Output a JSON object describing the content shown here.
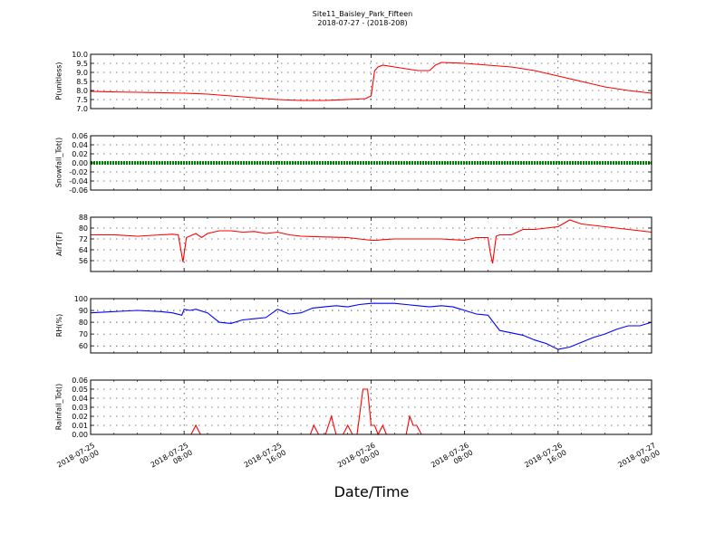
{
  "title": "Site11_Baisley_Park_Fifteen",
  "subtitle": "2018-07-27 - (2018-208)",
  "xlabel": "Date/Time",
  "x_ticks": [
    "2018-07-25\n00:00",
    "2018-07-25\n08:00",
    "2018-07-25\n16:00",
    "2018-07-26\n00:00",
    "2018-07-26\n08:00",
    "2018-07-26\n16:00",
    "2018-07-27\n00:00"
  ],
  "colors": {
    "red": "#ff0000",
    "green": "#008000",
    "blue": "#0000ff"
  },
  "chart_data": [
    {
      "type": "line",
      "ylabel": "P(unitless)",
      "ylim": [
        7.0,
        10.0
      ],
      "yticks": [
        "7.0",
        "7.5",
        "8.0",
        "8.5",
        "9.0",
        "9.5",
        "10.0"
      ],
      "yticks_num": [
        7.0,
        7.5,
        8.0,
        8.5,
        9.0,
        9.5,
        10.0
      ],
      "grid": true,
      "series": [
        {
          "color": "red",
          "x": [
            0,
            2,
            4,
            6,
            8,
            9,
            10,
            12,
            14,
            16,
            18,
            20,
            22,
            23.5,
            24,
            24.3,
            24.6,
            25,
            26,
            28,
            29,
            29.5,
            30,
            32,
            34,
            36,
            38,
            40,
            42,
            44,
            46,
            48
          ],
          "y": [
            7.95,
            7.92,
            7.9,
            7.88,
            7.85,
            7.83,
            7.8,
            7.7,
            7.6,
            7.5,
            7.45,
            7.45,
            7.5,
            7.55,
            7.7,
            9.1,
            9.3,
            9.4,
            9.3,
            9.1,
            9.1,
            9.4,
            9.55,
            9.5,
            9.4,
            9.3,
            9.1,
            8.8,
            8.5,
            8.2,
            8.0,
            7.85
          ]
        }
      ]
    },
    {
      "type": "line",
      "ylabel": "Snowfall_Tot()",
      "ylim": [
        -0.06,
        0.06
      ],
      "yticks": [
        "-0.06",
        "-0.04",
        "-0.02",
        "0.00",
        "0.02",
        "0.04",
        "0.06"
      ],
      "yticks_num": [
        -0.06,
        -0.04,
        -0.02,
        0.0,
        0.02,
        0.04,
        0.06
      ],
      "grid": true,
      "series": [
        {
          "color": "green",
          "x": [
            0,
            48
          ],
          "y": [
            0,
            0
          ]
        }
      ]
    },
    {
      "type": "line",
      "ylabel": "AirT(F)",
      "ylim": [
        48,
        88
      ],
      "yticks": [
        "56",
        "64",
        "72",
        "80",
        "88"
      ],
      "yticks_num": [
        56,
        64,
        72,
        80,
        88
      ],
      "grid": true,
      "series": [
        {
          "color": "red",
          "x": [
            0,
            2,
            4,
            6,
            7,
            7.5,
            7.7,
            7.9,
            8.2,
            9,
            9.5,
            10,
            11,
            12,
            13,
            14,
            15,
            16,
            17,
            18,
            20,
            22,
            23,
            24,
            24.5,
            25,
            26,
            28,
            30,
            32,
            33,
            34,
            34.2,
            34.4,
            34.7,
            35,
            36,
            37,
            38,
            40,
            41,
            42,
            43,
            44,
            45,
            46,
            48
          ],
          "y": [
            75,
            75,
            74,
            75,
            75.5,
            75,
            65,
            55,
            73,
            76,
            73,
            76,
            78,
            78,
            77,
            77.5,
            76,
            77,
            75,
            74,
            73.5,
            73,
            72,
            71,
            71,
            71.5,
            72,
            72,
            72,
            71,
            73,
            73,
            62,
            54,
            74,
            75,
            75,
            79,
            79,
            81,
            86,
            83,
            82,
            81,
            80,
            79,
            77
          ]
        }
      ]
    },
    {
      "type": "line",
      "ylabel": "RH(%)",
      "ylim": [
        54,
        100
      ],
      "yticks": [
        "60",
        "70",
        "80",
        "90",
        "100"
      ],
      "yticks_num": [
        60,
        70,
        80,
        90,
        100
      ],
      "grid": true,
      "series": [
        {
          "color": "blue",
          "x": [
            0,
            2,
            4,
            6,
            7,
            7.8,
            8,
            8.5,
            9,
            10,
            11,
            12,
            13,
            14,
            15,
            16,
            17,
            18,
            19,
            20,
            21,
            22,
            23,
            24,
            25,
            26,
            27,
            28,
            29,
            30,
            31,
            32,
            33,
            34,
            35,
            36,
            37,
            38,
            39,
            40,
            41,
            42,
            43,
            44,
            45,
            46,
            47,
            48
          ],
          "y": [
            88,
            89,
            90,
            89,
            88,
            86,
            91,
            90,
            91,
            88,
            80,
            79,
            82,
            83,
            84,
            91,
            87,
            88,
            92,
            93,
            94,
            93,
            95,
            96,
            96,
            96,
            95,
            94,
            93,
            94,
            93,
            90,
            87,
            86,
            73,
            71,
            69,
            65,
            62,
            57,
            59,
            63,
            67,
            70,
            74,
            77,
            77,
            80
          ]
        }
      ]
    },
    {
      "type": "line",
      "ylabel": "Rainfall_Tot()",
      "ylim": [
        0.0,
        0.06
      ],
      "yticks": [
        "0.00",
        "0.01",
        "0.02",
        "0.03",
        "0.04",
        "0.05",
        "0.06"
      ],
      "yticks_num": [
        0.0,
        0.01,
        0.02,
        0.03,
        0.04,
        0.05,
        0.06
      ],
      "grid": true,
      "series": [
        {
          "color": "red",
          "x": [
            0,
            8.6,
            9,
            9.4,
            18.8,
            19.1,
            19.5,
            20.1,
            20.6,
            21,
            21.6,
            22,
            22.4,
            22.8,
            23.3,
            23.7,
            24,
            24.3,
            24.6,
            25,
            25.3,
            25.6,
            26,
            26.5,
            27,
            27.3,
            27.6,
            27.9,
            28.3,
            28.6,
            29,
            48
          ],
          "y": [
            0,
            0,
            0.01,
            0,
            0,
            0.01,
            0,
            0,
            0.02,
            0,
            0,
            0.01,
            0,
            0,
            0.05,
            0.05,
            0.01,
            0.01,
            0,
            0.01,
            0,
            0,
            0,
            0,
            0,
            0.02,
            0.01,
            0.01,
            0,
            0,
            0,
            0
          ]
        }
      ]
    }
  ]
}
